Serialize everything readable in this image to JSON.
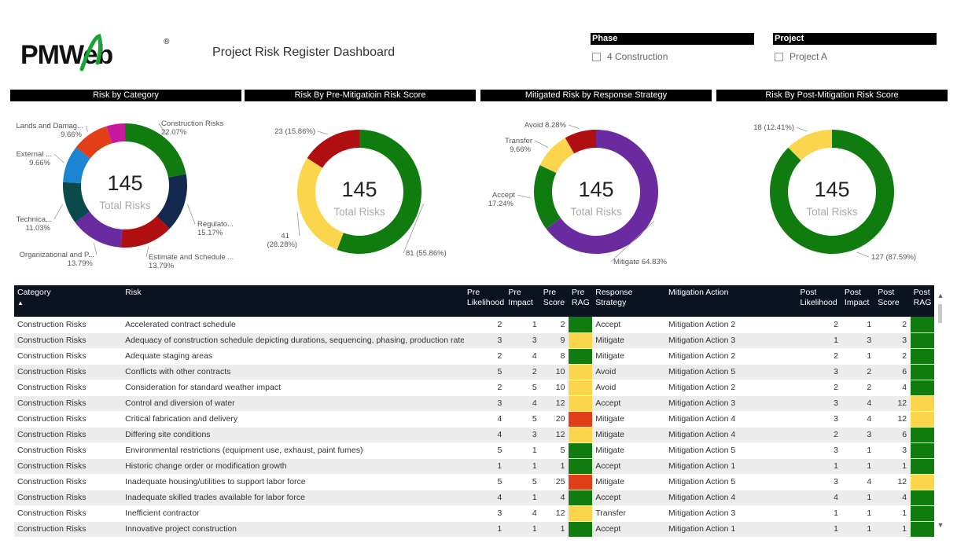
{
  "header": {
    "logo_text": "PMWeb",
    "logo_reg": "®",
    "title": "Project Risk Register Dashboard"
  },
  "slicers": [
    {
      "label": "Phase",
      "option": "4 Construction"
    },
    {
      "label": "Project",
      "option": "Project A"
    }
  ],
  "colors": {
    "green": "#107c10",
    "yellow": "#fbd54b",
    "red": "#e03f17",
    "darkred": "#b00f12",
    "navy": "#13294d",
    "blue": "#1a85d4",
    "purple": "#6b2ba0",
    "teal": "#0a4a4a",
    "magenta": "#c8199e",
    "header_dark": "#0b1220"
  },
  "chart_data": [
    {
      "type": "pie",
      "title": "Risk by Category",
      "center_value": "145",
      "center_label": "Total Risks",
      "slices": [
        {
          "label": "Construction Risks",
          "value": 22.07,
          "display": "22.07%",
          "color": "#107c10"
        },
        {
          "label": "Regulato...",
          "value": 15.17,
          "display": "15.17%",
          "color": "#13294d"
        },
        {
          "label": "Estimate and Schedule ...",
          "value": 13.79,
          "display": "13.79%",
          "color": "#b00f12"
        },
        {
          "label": "Organizational and P...",
          "value": 13.79,
          "display": "13.79%",
          "color": "#6b2ba0"
        },
        {
          "label": "Technica...",
          "value": 11.03,
          "display": "11.03%",
          "color": "#0a4a4a"
        },
        {
          "label": "External ...",
          "value": 9.66,
          "display": "9.66%",
          "color": "#1a85d4"
        },
        {
          "label": "Lands and Damag...",
          "value": 9.66,
          "display": "9.66%",
          "color": "#e03f17"
        },
        {
          "label": "",
          "value": 4.83,
          "display": "",
          "color": "#c8199e"
        }
      ]
    },
    {
      "type": "pie",
      "title": "Risk By Pre-Mitigatioin Risk Score",
      "center_value": "145",
      "center_label": "Total Risks",
      "slices": [
        {
          "label": "81 (55.86%)",
          "value": 81,
          "color": "#107c10"
        },
        {
          "label": "41 (28.28%)",
          "value": 41,
          "color": "#fbd54b"
        },
        {
          "label": "23 (15.86%)",
          "value": 23,
          "color": "#b00f12"
        }
      ]
    },
    {
      "type": "pie",
      "title": "Mitigated Risk by Response Strategy",
      "center_value": "145",
      "center_label": "Total Risks",
      "slices": [
        {
          "label": "Mitigate",
          "value": 64.83,
          "display": "64.83%",
          "color": "#6b2ba0"
        },
        {
          "label": "Accept",
          "value": 17.24,
          "display": "17.24%",
          "color": "#107c10"
        },
        {
          "label": "Transfer",
          "value": 9.66,
          "display": "9.66%",
          "color": "#fbd54b"
        },
        {
          "label": "Avoid",
          "value": 8.28,
          "display": "8.28%",
          "color": "#b00f12"
        }
      ]
    },
    {
      "type": "pie",
      "title": "Risk By Post-Mitigation Risk Score",
      "center_value": "145",
      "center_label": "Total Risks",
      "slices": [
        {
          "label": "127 (87.59%)",
          "value": 127,
          "color": "#107c10"
        },
        {
          "label": "18 (12.41%)",
          "value": 18,
          "color": "#fbd54b"
        }
      ]
    }
  ],
  "table": {
    "headers": {
      "category": "Category",
      "risk": "Risk",
      "pre_likelihood": "Pre Likelihood",
      "pre_impact": "Pre Impact",
      "pre_score": "Pre Score",
      "pre_rag": "Pre RAG",
      "response": "Response Strategy",
      "action": "Mitigation Action",
      "post_likelihood": "Post Likelihood",
      "post_impact": "Post Impact",
      "post_score": "Post Score",
      "post_rag": "Post RAG"
    },
    "sort_indicator": "▲",
    "rows": [
      {
        "category": "Construction Risks",
        "risk": "Accelerated contract schedule",
        "pl": "2",
        "pi": "1",
        "ps": "2",
        "prag": "green",
        "response": "Accept",
        "action": "Mitigation Action 2",
        "ol": "2",
        "oi": "1",
        "os": "2",
        "orag": "green"
      },
      {
        "category": "Construction Risks",
        "risk": "Adequacy of construction schedule depicting durations, sequencing, phasing, production rates",
        "pl": "3",
        "pi": "3",
        "ps": "9",
        "prag": "yellow",
        "response": "Mitigate",
        "action": "Mitigation Action 3",
        "ol": "1",
        "oi": "3",
        "os": "3",
        "orag": "green"
      },
      {
        "category": "Construction Risks",
        "risk": "Adequate staging areas",
        "pl": "2",
        "pi": "4",
        "ps": "8",
        "prag": "green",
        "response": "Mitigate",
        "action": "Mitigation Action 2",
        "ol": "2",
        "oi": "1",
        "os": "2",
        "orag": "green"
      },
      {
        "category": "Construction Risks",
        "risk": "Conflicts with other contracts",
        "pl": "5",
        "pi": "2",
        "ps": "10",
        "prag": "yellow",
        "response": "Avoid",
        "action": "Mitigation Action 5",
        "ol": "3",
        "oi": "2",
        "os": "6",
        "orag": "green"
      },
      {
        "category": "Construction Risks",
        "risk": "Consideration for standard weather impact",
        "pl": "2",
        "pi": "5",
        "ps": "10",
        "prag": "yellow",
        "response": "Avoid",
        "action": "Mitigation Action 2",
        "ol": "2",
        "oi": "2",
        "os": "4",
        "orag": "green"
      },
      {
        "category": "Construction Risks",
        "risk": "Control and diversion of water",
        "pl": "3",
        "pi": "4",
        "ps": "12",
        "prag": "yellow",
        "response": "Accept",
        "action": "Mitigation Action 3",
        "ol": "3",
        "oi": "4",
        "os": "12",
        "orag": "yellow"
      },
      {
        "category": "Construction Risks",
        "risk": "Critical fabrication and delivery",
        "pl": "4",
        "pi": "5",
        "ps": "20",
        "prag": "red",
        "response": "Mitigate",
        "action": "Mitigation Action 4",
        "ol": "3",
        "oi": "4",
        "os": "12",
        "orag": "yellow"
      },
      {
        "category": "Construction Risks",
        "risk": "Differing site conditions",
        "pl": "4",
        "pi": "3",
        "ps": "12",
        "prag": "yellow",
        "response": "Mitigate",
        "action": "Mitigation Action 4",
        "ol": "2",
        "oi": "3",
        "os": "6",
        "orag": "green"
      },
      {
        "category": "Construction Risks",
        "risk": "Environmental restrictions (equipment use, exhaust, paint fumes)",
        "pl": "5",
        "pi": "1",
        "ps": "5",
        "prag": "green",
        "response": "Mitigate",
        "action": "Mitigation Action 5",
        "ol": "3",
        "oi": "1",
        "os": "3",
        "orag": "green"
      },
      {
        "category": "Construction Risks",
        "risk": "Historic change order or modification growth",
        "pl": "1",
        "pi": "1",
        "ps": "1",
        "prag": "green",
        "response": "Accept",
        "action": "Mitigation Action 1",
        "ol": "1",
        "oi": "1",
        "os": "1",
        "orag": "green"
      },
      {
        "category": "Construction Risks",
        "risk": "Inadequate housing/utilities to support labor force",
        "pl": "5",
        "pi": "5",
        "ps": "25",
        "prag": "red",
        "response": "Mitigate",
        "action": "Mitigation Action 5",
        "ol": "3",
        "oi": "4",
        "os": "12",
        "orag": "yellow"
      },
      {
        "category": "Construction Risks",
        "risk": "Inadequate skilled trades available for labor force",
        "pl": "4",
        "pi": "1",
        "ps": "4",
        "prag": "green",
        "response": "Accept",
        "action": "Mitigation Action 4",
        "ol": "4",
        "oi": "1",
        "os": "4",
        "orag": "green"
      },
      {
        "category": "Construction Risks",
        "risk": "Inefficient contractor",
        "pl": "3",
        "pi": "4",
        "ps": "12",
        "prag": "yellow",
        "response": "Transfer",
        "action": "Mitigation Action 3",
        "ol": "1",
        "oi": "1",
        "os": "1",
        "orag": "green"
      },
      {
        "category": "Construction Risks",
        "risk": "Innovative project construction",
        "pl": "1",
        "pi": "1",
        "ps": "1",
        "prag": "green",
        "response": "Accept",
        "action": "Mitigation Action 1",
        "ol": "1",
        "oi": "1",
        "os": "1",
        "orag": "green"
      }
    ]
  },
  "scroll": {
    "up": "▲",
    "down": "▼"
  }
}
